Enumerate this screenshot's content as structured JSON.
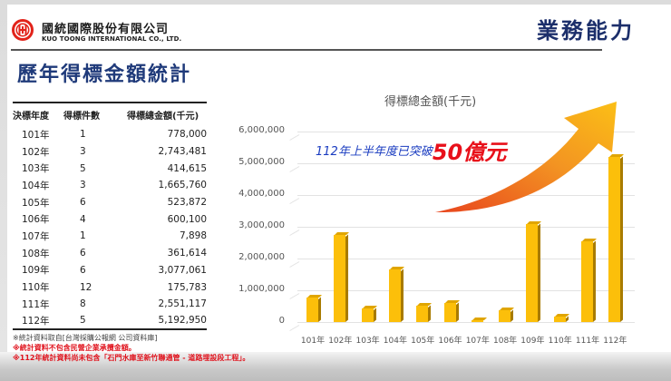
{
  "company": {
    "name_cn": "國統國際股份有限公司",
    "name_en": "KUO TOONG INTERNATIONAL CO., LTD.",
    "logo_icon": "kt-circle-logo-icon",
    "logo_color": "#e2231a"
  },
  "header": {
    "section_title": "業務能力",
    "page_title": "歷年得標金額統計"
  },
  "table": {
    "headers": [
      "決標年度",
      "得標件數",
      "得標總金額(千元)"
    ],
    "rows": [
      {
        "year": "101年",
        "count": "1",
        "amount": "778,000"
      },
      {
        "year": "102年",
        "count": "3",
        "amount": "2,743,481"
      },
      {
        "year": "103年",
        "count": "5",
        "amount": "414,615"
      },
      {
        "year": "104年",
        "count": "3",
        "amount": "1,665,760"
      },
      {
        "year": "105年",
        "count": "6",
        "amount": "523,872"
      },
      {
        "year": "106年",
        "count": "4",
        "amount": "600,100"
      },
      {
        "year": "107年",
        "count": "1",
        "amount": "7,898"
      },
      {
        "year": "108年",
        "count": "6",
        "amount": "361,614"
      },
      {
        "year": "109年",
        "count": "6",
        "amount": "3,077,061"
      },
      {
        "year": "110年",
        "count": "12",
        "amount": "175,783"
      },
      {
        "year": "111年",
        "count": "8",
        "amount": "2,551,117"
      },
      {
        "year": "112年",
        "count": "5",
        "amount": "5,192,950"
      }
    ]
  },
  "notes": [
    "※統計資料取自[台灣採購公報網 公司資料庫]",
    "※統計資料不包含民營企業承攬金額。",
    "※112年統計資料尚未包含「石門水庫至新竹聯通管 - 道路埋設段工程」。"
  ],
  "callout": {
    "prefix": "112年上半年度已突破",
    "highlight": "50億元",
    "prefix_color": "#1a3cc0",
    "highlight_color": "#e8101a",
    "arrow_icon": "upward-curved-arrow-icon"
  },
  "chart_data": {
    "type": "bar",
    "title": "得標總金額(千元)",
    "xlabel": "",
    "ylabel": "",
    "categories": [
      "101年",
      "102年",
      "103年",
      "104年",
      "105年",
      "106年",
      "107年",
      "108年",
      "109年",
      "110年",
      "111年",
      "112年"
    ],
    "values": [
      778000,
      2743481,
      414615,
      1665760,
      523872,
      600100,
      7898,
      361614,
      3077061,
      175783,
      2551117,
      5192950
    ],
    "ylim": [
      0,
      6000000
    ],
    "yticks": [
      "0",
      "1,000,000",
      "2,000,000",
      "3,000,000",
      "4,000,000",
      "5,000,000",
      "6,000,000"
    ],
    "grid": true,
    "legend": "none",
    "bar_color": "#fcbf0a",
    "style": "3d-column"
  }
}
